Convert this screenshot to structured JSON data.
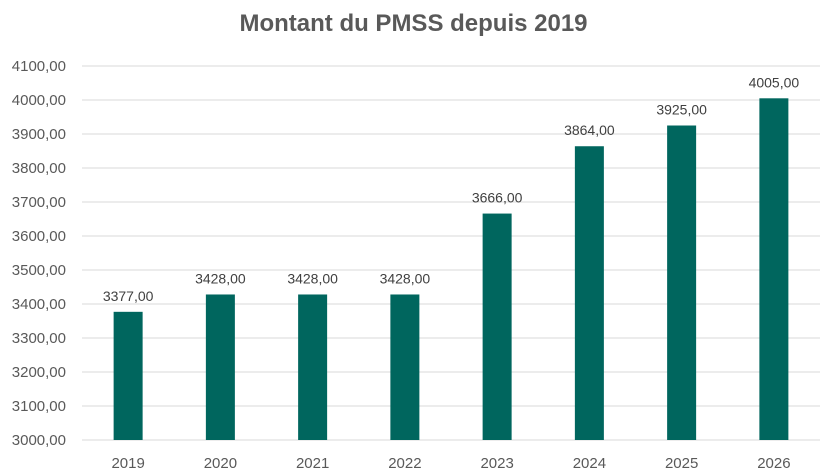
{
  "chart_data": {
    "type": "bar",
    "title": "Montant du PMSS depuis 2019",
    "xlabel": "",
    "ylabel": "",
    "categories": [
      "2019",
      "2020",
      "2021",
      "2022",
      "2023",
      "2024",
      "2025",
      "2026"
    ],
    "values": [
      3377.0,
      3428.0,
      3428.0,
      3428.0,
      3666.0,
      3864.0,
      3925.0,
      4005.0
    ],
    "data_labels": [
      "3377,00",
      "3428,00",
      "3428,00",
      "3428,00",
      "3666,00",
      "3864,00",
      "3925,00",
      "4005,00"
    ],
    "ylim": [
      3000,
      4100
    ],
    "y_ticks": [
      3000,
      3100,
      3200,
      3300,
      3400,
      3500,
      3600,
      3700,
      3800,
      3900,
      4000,
      4100
    ],
    "y_tick_labels": [
      "3000,00",
      "3100,00",
      "3200,00",
      "3300,00",
      "3400,00",
      "3500,00",
      "3600,00",
      "3700,00",
      "3800,00",
      "3900,00",
      "4000,00",
      "4100,00"
    ],
    "grid": true,
    "legend": "none",
    "bar_color": "#00665E",
    "grid_color": "#D9D9D9"
  }
}
